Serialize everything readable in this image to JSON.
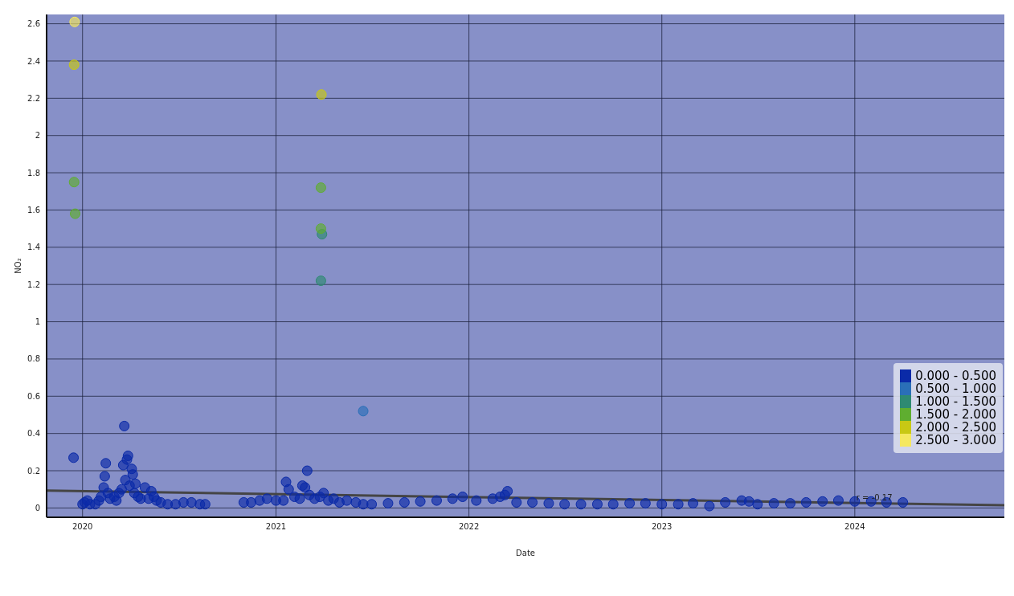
{
  "chart_data": {
    "type": "scatter",
    "xlabel": "Date",
    "ylabel": "NO₂",
    "xlim": [
      "2019-10-25",
      "2024-10-10"
    ],
    "ylim": [
      -0.05,
      2.65
    ],
    "xticks": [
      {
        "value": "2020-01-01",
        "label": "2020"
      },
      {
        "value": "2021-01-01",
        "label": "2021"
      },
      {
        "value": "2022-01-01",
        "label": "2022"
      },
      {
        "value": "2023-01-01",
        "label": "2023"
      },
      {
        "value": "2024-01-01",
        "label": "2024"
      }
    ],
    "yticks": [
      0,
      0.2,
      0.4,
      0.6,
      0.8,
      1,
      1.2,
      1.4,
      1.6,
      1.8,
      2,
      2.2,
      2.4,
      2.6
    ],
    "grid": true,
    "legend": "bottom right",
    "marker": "circle",
    "annotations": [
      {
        "text": "r = -0.17",
        "x": "2024-01-01",
        "y": 0.055
      }
    ],
    "series": [
      {
        "name": "0.000 - 0.500",
        "color": "#0a2aa8",
        "x": [
          "2019-12-15",
          "2020-01-01",
          "2020-01-05",
          "2020-01-10",
          "2020-01-15",
          "2020-01-25",
          "2020-02-01",
          "2020-02-05",
          "2020-02-10",
          "2020-02-12",
          "2020-02-14",
          "2020-02-18",
          "2020-02-22",
          "2020-03-01",
          "2020-03-05",
          "2020-03-10",
          "2020-03-15",
          "2020-03-18",
          "2020-03-20",
          "2020-03-22",
          "2020-03-25",
          "2020-03-27",
          "2020-03-30",
          "2020-04-03",
          "2020-04-05",
          "2020-04-08",
          "2020-04-10",
          "2020-04-15",
          "2020-04-20",
          "2020-04-28",
          "2020-05-05",
          "2020-05-10",
          "2020-05-15",
          "2020-05-20",
          "2020-05-28",
          "2020-06-10",
          "2020-06-25",
          "2020-07-10",
          "2020-07-25",
          "2020-08-10",
          "2020-08-20",
          "2020-11-01",
          "2020-11-15",
          "2020-12-01",
          "2020-12-15",
          "2021-01-01",
          "2021-01-15",
          "2021-01-20",
          "2021-01-25",
          "2021-02-05",
          "2021-02-15",
          "2021-02-20",
          "2021-02-25",
          "2021-03-01",
          "2021-03-05",
          "2021-03-15",
          "2021-03-25",
          "2021-04-01",
          "2021-04-10",
          "2021-04-20",
          "2021-05-01",
          "2021-05-15",
          "2021-06-01",
          "2021-06-15",
          "2021-07-01",
          "2021-08-01",
          "2021-09-01",
          "2021-10-01",
          "2021-11-01",
          "2021-12-01",
          "2021-12-20",
          "2022-01-15",
          "2022-02-15",
          "2022-03-01",
          "2022-03-10",
          "2022-03-15",
          "2022-04-01",
          "2022-05-01",
          "2022-06-01",
          "2022-07-01",
          "2022-08-01",
          "2022-09-01",
          "2022-10-01",
          "2022-11-01",
          "2022-12-01",
          "2023-01-01",
          "2023-02-01",
          "2023-03-01",
          "2023-04-01",
          "2023-05-01",
          "2023-06-01",
          "2023-06-15",
          "2023-07-01",
          "2023-08-01",
          "2023-09-01",
          "2023-10-01",
          "2023-11-01",
          "2023-12-01",
          "2024-01-01",
          "2024-02-01",
          "2024-03-01",
          "2024-04-01"
        ],
        "values": [
          0.27,
          0.02,
          0.03,
          0.04,
          0.02,
          0.02,
          0.04,
          0.06,
          0.11,
          0.17,
          0.24,
          0.08,
          0.05,
          0.06,
          0.04,
          0.08,
          0.1,
          0.23,
          0.44,
          0.15,
          0.26,
          0.28,
          0.12,
          0.21,
          0.18,
          0.08,
          0.13,
          0.06,
          0.05,
          0.11,
          0.05,
          0.09,
          0.06,
          0.04,
          0.03,
          0.02,
          0.02,
          0.03,
          0.03,
          0.02,
          0.02,
          0.03,
          0.03,
          0.04,
          0.05,
          0.04,
          0.04,
          0.14,
          0.1,
          0.06,
          0.05,
          0.12,
          0.11,
          0.2,
          0.07,
          0.05,
          0.06,
          0.08,
          0.04,
          0.05,
          0.03,
          0.04,
          0.03,
          0.02,
          0.02,
          0.025,
          0.03,
          0.035,
          0.04,
          0.05,
          0.06,
          0.04,
          0.05,
          0.06,
          0.07,
          0.09,
          0.03,
          0.03,
          0.025,
          0.02,
          0.02,
          0.02,
          0.02,
          0.025,
          0.025,
          0.02,
          0.02,
          0.025,
          0.01,
          0.03,
          0.04,
          0.035,
          0.02,
          0.025,
          0.025,
          0.03,
          0.035,
          0.04,
          0.035,
          0.035,
          0.03,
          0.03
        ]
      },
      {
        "name": "0.500 - 1.000",
        "color": "#2a6fb8",
        "x": [
          "2021-06-15"
        ],
        "values": [
          0.52
        ]
      },
      {
        "name": "1.000 - 1.500",
        "color": "#2e8a72",
        "x": [
          "2021-03-29",
          "2021-03-27"
        ],
        "values": [
          1.47,
          1.22
        ]
      },
      {
        "name": "1.500 - 2.000",
        "color": "#5fae30",
        "x": [
          "2019-12-16",
          "2019-12-18",
          "2021-03-27",
          "2021-03-27"
        ],
        "values": [
          1.75,
          1.58,
          1.72,
          1.5
        ]
      },
      {
        "name": "2.000 - 2.500",
        "color": "#c8c814",
        "x": [
          "2019-12-16",
          "2021-03-28"
        ],
        "values": [
          2.38,
          2.22
        ]
      },
      {
        "name": "2.500 - 3.000",
        "color": "#f5e860",
        "x": [
          "2019-12-17"
        ],
        "values": [
          2.61
        ]
      },
      {
        "type": "line",
        "marker": "none",
        "color": "#454545",
        "x": [
          "2019-10-25",
          "2024-10-10"
        ],
        "values": [
          0.093,
          0.015
        ]
      }
    ]
  }
}
